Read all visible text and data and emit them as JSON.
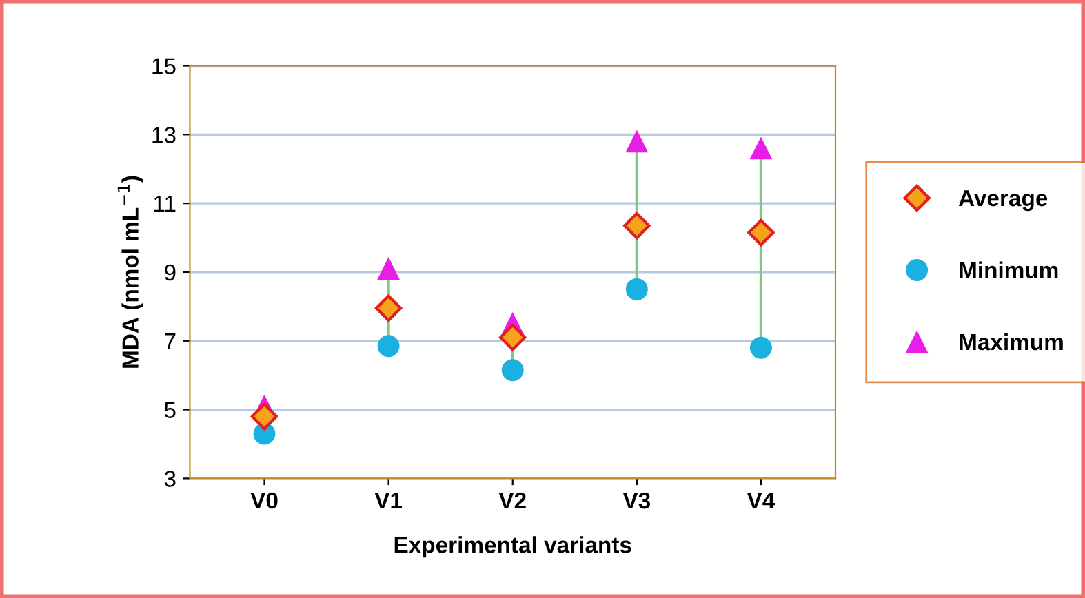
{
  "chart_data": {
    "type": "scatter",
    "xlabel": "Experimental variants",
    "ylabel": "MDA (nmol mL$^{−1}$)",
    "categories": [
      "V0",
      "V1",
      "V2",
      "V3",
      "V4"
    ],
    "series": [
      {
        "name": "Average",
        "color": "#f7a21b",
        "marker": "diamond",
        "values": [
          4.8,
          7.95,
          7.1,
          10.35,
          10.15
        ]
      },
      {
        "name": "Minimum",
        "color": "#1ab0e0",
        "marker": "circle",
        "values": [
          4.3,
          6.85,
          6.15,
          8.5,
          6.8
        ]
      },
      {
        "name": "Maximum",
        "color": "#e61ee6",
        "marker": "triangle",
        "values": [
          5.1,
          9.1,
          7.5,
          12.8,
          12.6
        ]
      }
    ],
    "ylim": [
      3,
      15
    ],
    "yticks": [
      3,
      5,
      7,
      9,
      11,
      13,
      15
    ],
    "grid": "y",
    "legend": "right"
  }
}
